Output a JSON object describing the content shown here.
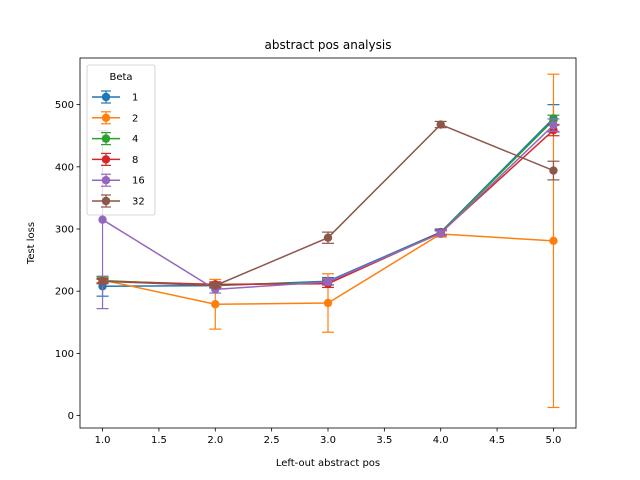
{
  "chart_data": {
    "type": "line",
    "title": "abstract pos analysis",
    "xlabel": "Left-out abstract pos",
    "ylabel": "Test loss",
    "xlim": [
      0.8,
      5.2
    ],
    "ylim": [
      -20,
      575
    ],
    "xticks": [
      1.0,
      1.5,
      2.0,
      2.5,
      3.0,
      3.5,
      4.0,
      4.5,
      5.0
    ],
    "xtick_labels": [
      "1.0",
      "1.5",
      "2.0",
      "2.5",
      "3.0",
      "3.5",
      "4.0",
      "4.5",
      "5.0"
    ],
    "yticks": [
      0,
      100,
      200,
      300,
      400,
      500
    ],
    "ytick_labels": [
      "0",
      "100",
      "200",
      "300",
      "400",
      "500"
    ],
    "grid": false,
    "legend": {
      "title": "Beta",
      "position": "top-left"
    },
    "x": [
      1,
      2,
      3,
      4,
      5
    ],
    "series": [
      {
        "name": "1",
        "color": "#1f77b4",
        "values": [
          208,
          209,
          216,
          295,
          478
        ],
        "err": [
          16,
          4,
          6,
          5,
          22
        ]
      },
      {
        "name": "2",
        "color": "#ff7f0e",
        "values": [
          218,
          179,
          181,
          292,
          281
        ],
        "err": [
          4,
          40,
          47,
          5,
          268
        ]
      },
      {
        "name": "4",
        "color": "#2ca02c",
        "values": [
          217,
          210,
          214,
          294,
          475
        ],
        "err": [
          4,
          3,
          4,
          4,
          8
        ]
      },
      {
        "name": "8",
        "color": "#d62728",
        "values": [
          216,
          211,
          212,
          294,
          459
        ],
        "err": [
          4,
          4,
          6,
          4,
          9
        ]
      },
      {
        "name": "16",
        "color": "#9467bd",
        "values": [
          315,
          203,
          215,
          293,
          467
        ],
        "err": [
          143,
          6,
          5,
          4,
          10
        ]
      },
      {
        "name": "32",
        "color": "#8c564b",
        "values": [
          216,
          209,
          286,
          468,
          394
        ],
        "err": [
          3,
          3,
          9,
          5,
          15
        ]
      }
    ]
  }
}
